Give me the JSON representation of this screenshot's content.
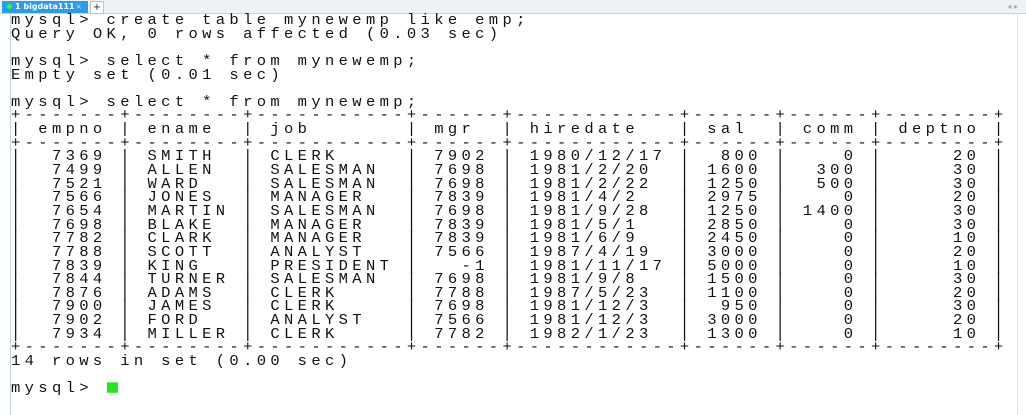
{
  "tabs": [
    {
      "label": "1 bigdata111",
      "close": "×",
      "active": true
    }
  ],
  "add_tab_label": "+",
  "nav_arrows": "◂ ▸",
  "colors": {
    "tab_active": "#2f9be8",
    "cursor": "#22e622",
    "status_dot": "#33ff33"
  },
  "terminal": {
    "lines_before": [
      "mysql> create table mynewemp like emp;",
      "Query OK, 0 rows affected (0.03 sec)",
      "",
      "mysql> select * from mynewemp;",
      "Empty set (0.01 sec)",
      "",
      "mysql> select * from mynewemp;"
    ],
    "table": {
      "columns": [
        "empno",
        "ename",
        "job",
        "mgr",
        "hiredate",
        "sal",
        "comm",
        "deptno"
      ],
      "right_align": [
        true,
        false,
        false,
        true,
        false,
        true,
        true,
        true
      ],
      "rows": [
        [
          "7369",
          "SMITH",
          "CLERK",
          "7902",
          "1980/12/17",
          "800",
          "0",
          "20"
        ],
        [
          "7499",
          "ALLEN",
          "SALESMAN",
          "7698",
          "1981/2/20",
          "1600",
          "300",
          "30"
        ],
        [
          "7521",
          "WARD",
          "SALESMAN",
          "7698",
          "1981/2/22",
          "1250",
          "500",
          "30"
        ],
        [
          "7566",
          "JONES",
          "MANAGER",
          "7839",
          "1981/4/2",
          "2975",
          "0",
          "20"
        ],
        [
          "7654",
          "MARTIN",
          "SALESMAN",
          "7698",
          "1981/9/28",
          "1250",
          "1400",
          "30"
        ],
        [
          "7698",
          "BLAKE",
          "MANAGER",
          "7839",
          "1981/5/1",
          "2850",
          "0",
          "30"
        ],
        [
          "7782",
          "CLARK",
          "MANAGER",
          "7839",
          "1981/6/9",
          "2450",
          "0",
          "10"
        ],
        [
          "7788",
          "SCOTT",
          "ANALYST",
          "7566",
          "1987/4/19",
          "3000",
          "0",
          "20"
        ],
        [
          "7839",
          "KING",
          "PRESIDENT",
          "-1",
          "1981/11/17",
          "5000",
          "0",
          "10"
        ],
        [
          "7844",
          "TURNER",
          "SALESMAN",
          "7698",
          "1981/9/8",
          "1500",
          "0",
          "30"
        ],
        [
          "7876",
          "ADAMS",
          "CLERK",
          "7788",
          "1987/5/23",
          "1100",
          "0",
          "20"
        ],
        [
          "7900",
          "JAMES",
          "CLERK",
          "7698",
          "1981/12/3",
          "950",
          "0",
          "30"
        ],
        [
          "7902",
          "FORD",
          "ANALYST",
          "7566",
          "1981/12/3",
          "3000",
          "0",
          "20"
        ],
        [
          "7934",
          "MILLER",
          "CLERK",
          "7782",
          "1982/1/23",
          "1300",
          "0",
          "10"
        ]
      ]
    },
    "result_summary": "14 rows in set (0.00 sec)",
    "prompt": "mysql> "
  }
}
